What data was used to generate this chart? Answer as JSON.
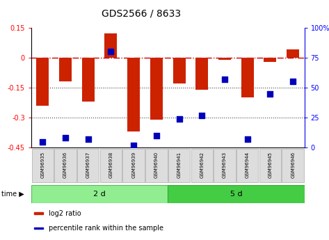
{
  "title": "GDS2566 / 8633",
  "samples": [
    "GSM96935",
    "GSM96936",
    "GSM96937",
    "GSM96938",
    "GSM96939",
    "GSM96940",
    "GSM96941",
    "GSM96942",
    "GSM96943",
    "GSM96944",
    "GSM96945",
    "GSM96946"
  ],
  "log2_ratio": [
    -0.24,
    -0.12,
    -0.22,
    0.12,
    -0.37,
    -0.31,
    -0.13,
    -0.16,
    -0.01,
    -0.2,
    -0.02,
    0.04
  ],
  "percentile_rank": [
    5,
    8,
    7,
    80,
    2,
    10,
    24,
    27,
    57,
    7,
    45,
    55
  ],
  "groups": [
    {
      "label": "2 d",
      "start": 0,
      "end": 6,
      "color": "#90EE90",
      "edge": "#55BB55"
    },
    {
      "label": "5 d",
      "start": 6,
      "end": 12,
      "color": "#44CC44",
      "edge": "#33AA33"
    }
  ],
  "ylim_left": [
    -0.45,
    0.15
  ],
  "ylim_right": [
    0,
    100
  ],
  "yticks_left": [
    0.15,
    0.0,
    -0.15,
    -0.3,
    -0.45
  ],
  "yticks_left_labels": [
    "0.15",
    "0",
    "-0.15",
    "-0.3",
    "-0.45"
  ],
  "yticks_right": [
    100,
    75,
    50,
    25,
    0
  ],
  "yticks_right_labels": [
    "100%",
    "75",
    "50",
    "25",
    "0"
  ],
  "hlines": [
    0.0,
    -0.15,
    -0.3
  ],
  "hline_styles": [
    "dashdot",
    "dotted",
    "dotted"
  ],
  "hline_colors": [
    "#CC0000",
    "#444444",
    "#444444"
  ],
  "hline_lw": [
    1.0,
    0.8,
    0.8
  ],
  "bar_color": "#CC2200",
  "dot_color": "#0000BB",
  "bar_width": 0.55,
  "dot_size": 30,
  "legend_items": [
    {
      "label": "log2 ratio",
      "color": "#CC2200"
    },
    {
      "label": "percentile rank within the sample",
      "color": "#0000BB"
    }
  ],
  "title_fontsize": 10,
  "tick_fontsize": 7,
  "sample_fontsize": 5,
  "group_fontsize": 8,
  "legend_fontsize": 7,
  "time_fontsize": 7
}
